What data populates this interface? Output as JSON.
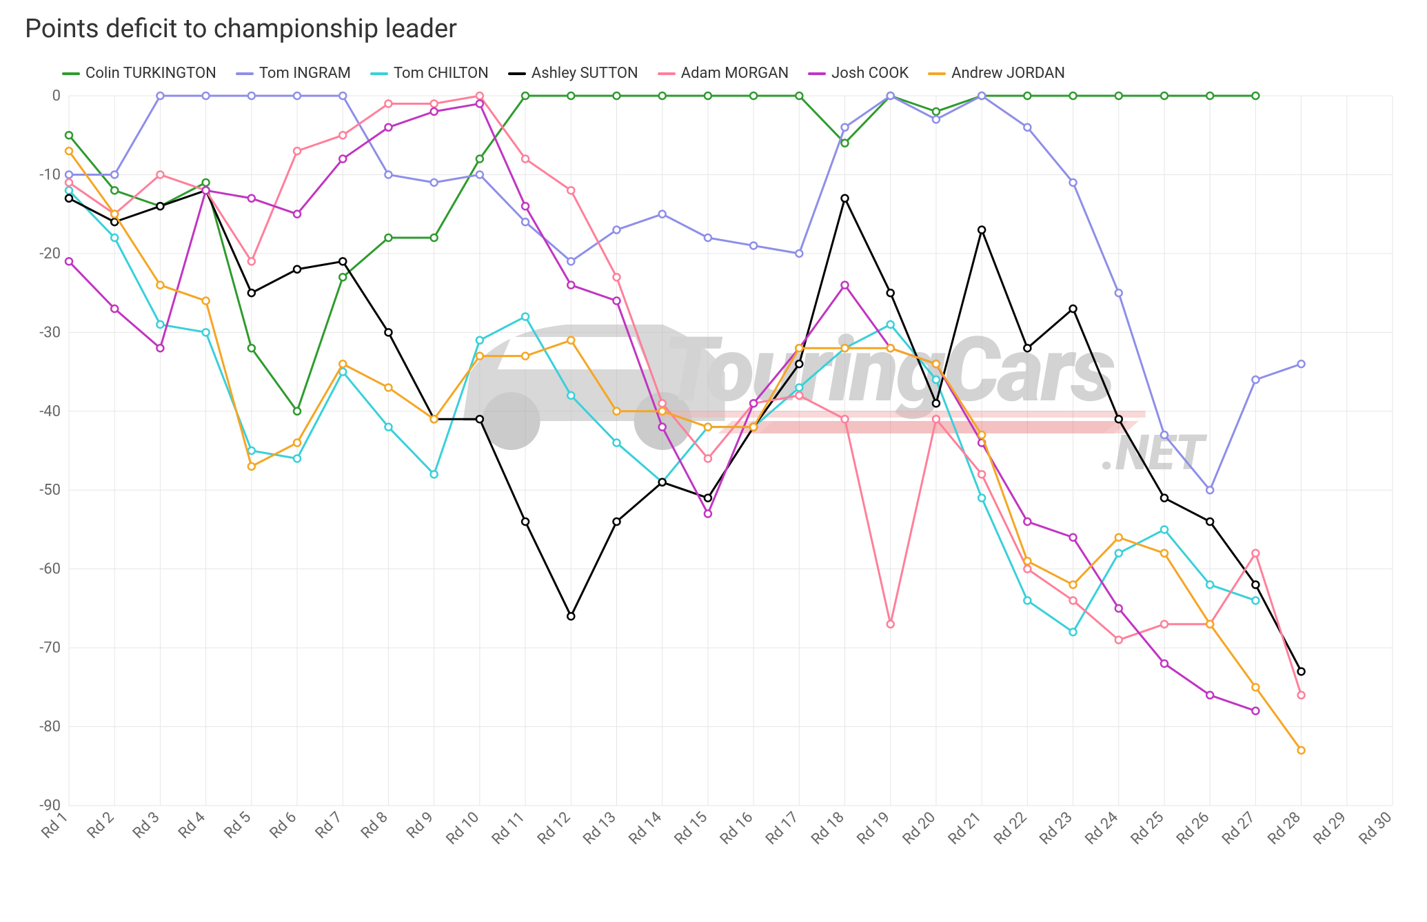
{
  "title": "Points deficit to championship leader",
  "chart": {
    "type": "line",
    "background_color": "#ffffff",
    "grid_color": "#e6e6e6",
    "axis_label_color": "#666666",
    "axis_font_size": 22,
    "title_font_size": 38,
    "title_color": "#333333",
    "y_axis": {
      "min": -90,
      "max": 0,
      "step": 10,
      "ticks": [
        0,
        -10,
        -20,
        -30,
        -40,
        -50,
        -60,
        -70,
        -80,
        -90
      ]
    },
    "x_axis": {
      "labels": [
        "Rd 1",
        "Rd 2",
        "Rd 3",
        "Rd 4",
        "Rd 5",
        "Rd 6",
        "Rd 7",
        "Rd 8",
        "Rd 9",
        "Rd 10",
        "Rd 11",
        "Rd 12",
        "Rd 13",
        "Rd 14",
        "Rd 15",
        "Rd 16",
        "Rd 17",
        "Rd 18",
        "Rd 19",
        "Rd 20",
        "Rd 21",
        "Rd 22",
        "Rd 23",
        "Rd 24",
        "Rd 25",
        "Rd 26",
        "Rd 27",
        "Rd 28",
        "Rd 29",
        "Rd 30"
      ],
      "label_rotation": -45
    },
    "marker_radius": 5,
    "line_width": 3,
    "watermark": {
      "text_main": "TouringCars",
      "text_sub": ".NET",
      "color": "#b0b0b0",
      "accent_color": "#e57373",
      "opacity": 0.55
    },
    "series": [
      {
        "name": "Colin TURKINGTON",
        "color": "#2e9b2e",
        "data": [
          -5,
          -12,
          -14,
          -11,
          -32,
          -40,
          -23,
          -18,
          -18,
          -8,
          0,
          0,
          0,
          0,
          0,
          0,
          0,
          -6,
          0,
          -2,
          0,
          0,
          0,
          0,
          0,
          0,
          0
        ]
      },
      {
        "name": "Tom INGRAM",
        "color": "#8e8eea",
        "data": [
          -10,
          -10,
          0,
          0,
          0,
          0,
          0,
          -10,
          -11,
          -10,
          -16,
          -21,
          -17,
          -15,
          -18,
          -19,
          -20,
          -4,
          0,
          -3,
          0,
          -4,
          -11,
          -25,
          -43,
          -50,
          -36,
          -34
        ]
      },
      {
        "name": "Tom CHILTON",
        "color": "#39d0da",
        "data": [
          -12,
          -18,
          -29,
          -30,
          -45,
          -46,
          -35,
          -42,
          -48,
          -31,
          -28,
          -38,
          -44,
          -49,
          -42,
          -42,
          -37,
          -32,
          -29,
          -36,
          -51,
          -64,
          -68,
          -58,
          -55,
          -62,
          -64
        ]
      },
      {
        "name": "Ashley SUTTON",
        "color": "#000000",
        "data": [
          -13,
          -16,
          -14,
          -12,
          -25,
          -22,
          -21,
          -30,
          -41,
          -41,
          -54,
          -66,
          -54,
          -49,
          -51,
          -42,
          -34,
          -13,
          -25,
          -39,
          -17,
          -32,
          -27,
          -41,
          -51,
          -54,
          -62,
          -73
        ]
      },
      {
        "name": "Adam MORGAN",
        "color": "#ff7f9a",
        "data": [
          -11,
          -15,
          -10,
          -12,
          -21,
          -7,
          -5,
          -1,
          -1,
          0,
          -8,
          -12,
          -23,
          -39,
          -46,
          -39,
          -38,
          -41,
          -67,
          -41,
          -48,
          -60,
          -64,
          -69,
          -67,
          -67,
          -58,
          -76
        ]
      },
      {
        "name": "Josh COOK",
        "color": "#c135c1",
        "data": [
          -21,
          -27,
          -32,
          -12,
          -13,
          -15,
          -8,
          -4,
          -2,
          -1,
          -14,
          -24,
          -26,
          -42,
          -53,
          -39,
          -32,
          -24,
          -32,
          -34,
          -44,
          -54,
          -56,
          -65,
          -72,
          -76,
          -78
        ]
      },
      {
        "name": "Andrew JORDAN",
        "color": "#f5a623",
        "data": [
          -7,
          -15,
          -24,
          -26,
          -47,
          -44,
          -34,
          -37,
          -41,
          -33,
          -33,
          -31,
          -40,
          -40,
          -42,
          -42,
          -32,
          -32,
          -32,
          -34,
          -43,
          -59,
          -62,
          -56,
          -58,
          -67,
          -75,
          -83
        ]
      }
    ]
  }
}
